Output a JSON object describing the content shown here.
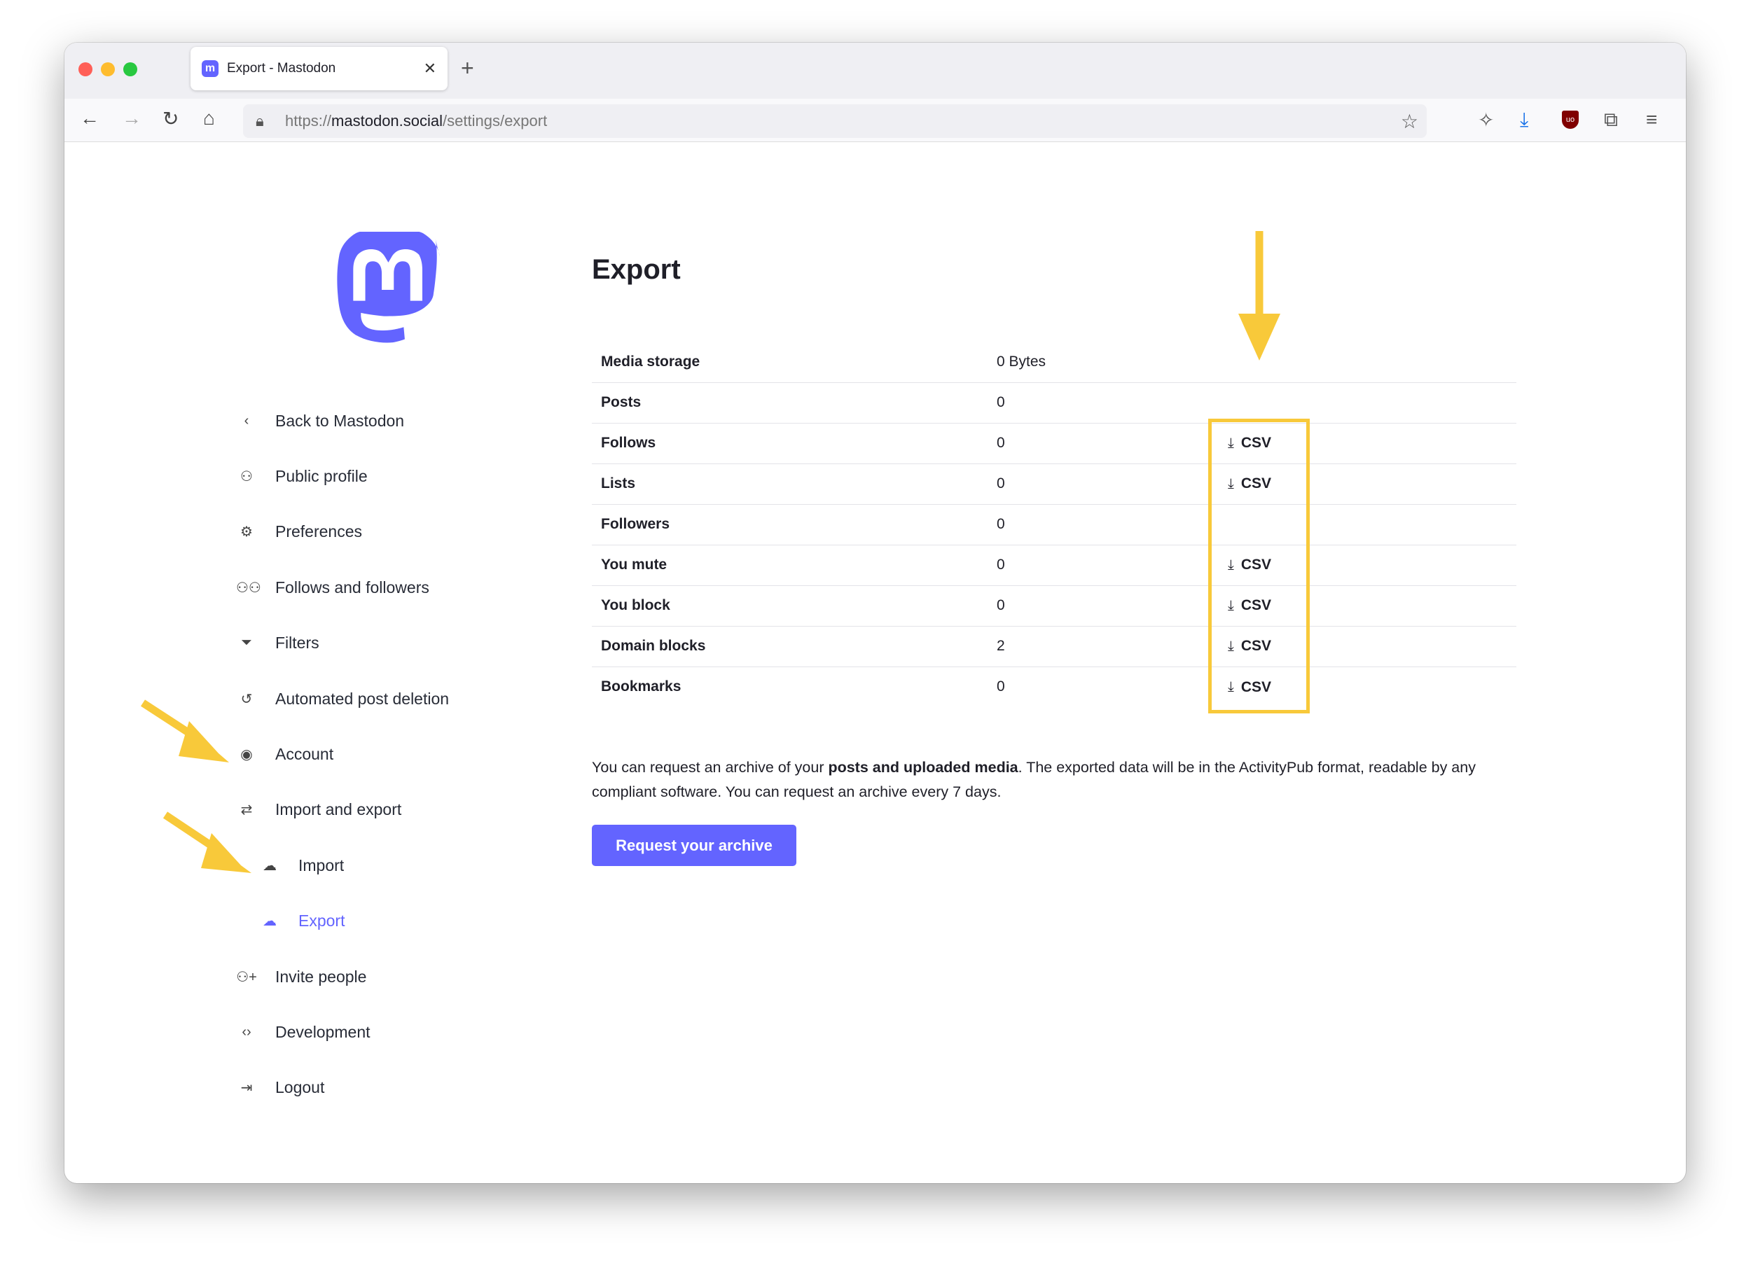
{
  "browser": {
    "tab_title": "Export - Mastodon",
    "tab_favicon": "mastodon-icon",
    "url_prefix": "https://",
    "url_domain": "mastodon.social",
    "url_path": "/settings/export",
    "download_icon_color": "#1a73e8",
    "ublock_color": "#800000"
  },
  "sidebar": {
    "items": [
      {
        "label": "Back to Mastodon",
        "icon": "chevron-left-icon"
      },
      {
        "label": "Public profile",
        "icon": "user-icon"
      },
      {
        "label": "Preferences",
        "icon": "gear-icon"
      },
      {
        "label": "Follows and followers",
        "icon": "users-icon"
      },
      {
        "label": "Filters",
        "icon": "filter-icon"
      },
      {
        "label": "Automated post deletion",
        "icon": "history-icon"
      },
      {
        "label": "Account",
        "icon": "user-circle-icon"
      },
      {
        "label": "Import and export",
        "icon": "import-export-icon"
      },
      {
        "label": "Import",
        "icon": "cloud-upload-icon"
      },
      {
        "label": "Export",
        "icon": "cloud-download-icon",
        "active": true
      },
      {
        "label": "Invite people",
        "icon": "user-plus-icon"
      },
      {
        "label": "Development",
        "icon": "code-icon"
      },
      {
        "label": "Logout",
        "icon": "logout-icon"
      }
    ]
  },
  "main": {
    "title": "Export",
    "csv_label": "CSV",
    "rows": [
      {
        "label": "Media storage",
        "value": "0 Bytes",
        "csv": false
      },
      {
        "label": "Posts",
        "value": "0",
        "csv": false
      },
      {
        "label": "Follows",
        "value": "0",
        "csv": true
      },
      {
        "label": "Lists",
        "value": "0",
        "csv": true
      },
      {
        "label": "Followers",
        "value": "0",
        "csv": false
      },
      {
        "label": "You mute",
        "value": "0",
        "csv": true
      },
      {
        "label": "You block",
        "value": "0",
        "csv": true
      },
      {
        "label": "Domain blocks",
        "value": "2",
        "csv": true
      },
      {
        "label": "Bookmarks",
        "value": "0",
        "csv": true
      }
    ],
    "para_1": "You can request an archive of your ",
    "para_bold": "posts and uploaded media",
    "para_2": ". The exported data will be in the ActivityPub format, readable by any compliant software. You can request an archive every 7 days.",
    "request_button": "Request your archive",
    "accent": "#6364ff",
    "annotation_color": "#f8c93a"
  }
}
